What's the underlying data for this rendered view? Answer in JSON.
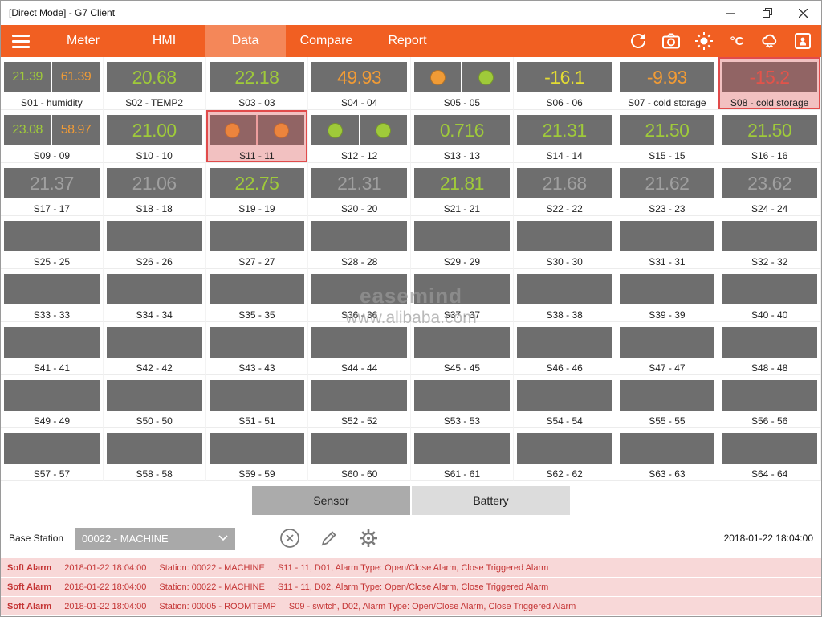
{
  "window": {
    "title": "[Direct Mode] - G7 Client"
  },
  "nav": {
    "tabs": [
      {
        "label": "Meter",
        "active": false
      },
      {
        "label": "HMI",
        "active": false
      },
      {
        "label": "Data",
        "active": true
      },
      {
        "label": "Compare",
        "active": false
      },
      {
        "label": "Report",
        "active": false
      }
    ],
    "celsius_label": "°C",
    "icon_names": [
      "sync-icon",
      "camera-icon",
      "brightness-icon",
      "celsius-unit",
      "cloud-icon",
      "exit-icon"
    ]
  },
  "colors": {
    "green": "#9fca3a",
    "orange": "#f09b36",
    "yellow": "#e3db33",
    "red": "#e25548",
    "gray": "#9f9f9f"
  },
  "sensors": [
    {
      "id": "S01",
      "label": "S01 - humidity",
      "type": "dual",
      "values": [
        "21.39",
        "61.39"
      ],
      "value_colors": [
        "green",
        "orange"
      ],
      "alarm": false
    },
    {
      "id": "S02",
      "label": "S02 - TEMP2",
      "type": "single",
      "values": [
        "20.68"
      ],
      "value_colors": [
        "green"
      ],
      "alarm": false
    },
    {
      "id": "S03",
      "label": "S03 - 03",
      "type": "single",
      "values": [
        "22.18"
      ],
      "value_colors": [
        "green"
      ],
      "alarm": false
    },
    {
      "id": "S04",
      "label": "S04 - 04",
      "type": "single",
      "values": [
        "49.93"
      ],
      "value_colors": [
        "orange"
      ],
      "alarm": false
    },
    {
      "id": "S05",
      "label": "S05 - 05",
      "type": "circles",
      "circle_colors": [
        "orange",
        "green"
      ],
      "alarm": false
    },
    {
      "id": "S06",
      "label": "S06 - 06",
      "type": "single",
      "values": [
        "-16.1"
      ],
      "value_colors": [
        "yellow"
      ],
      "alarm": false
    },
    {
      "id": "S07",
      "label": "S07 - cold storage",
      "type": "single",
      "values": [
        "-9.93"
      ],
      "value_colors": [
        "orange"
      ],
      "alarm": false
    },
    {
      "id": "S08",
      "label": "S08 - cold storage",
      "type": "single",
      "values": [
        "-15.2"
      ],
      "value_colors": [
        "red"
      ],
      "alarm": true
    },
    {
      "id": "S09",
      "label": "S09 - 09",
      "type": "dual",
      "values": [
        "23.08",
        "58.97"
      ],
      "value_colors": [
        "green",
        "orange"
      ],
      "alarm": false
    },
    {
      "id": "S10",
      "label": "S10 - 10",
      "type": "single",
      "values": [
        "21.00"
      ],
      "value_colors": [
        "green"
      ],
      "alarm": false
    },
    {
      "id": "S11",
      "label": "S11 - 11",
      "type": "circles",
      "circle_colors": [
        "orange",
        "orange"
      ],
      "alarm": true
    },
    {
      "id": "S12",
      "label": "S12 - 12",
      "type": "circles",
      "circle_colors": [
        "green",
        "green"
      ],
      "alarm": false
    },
    {
      "id": "S13",
      "label": "S13 - 13",
      "type": "single",
      "values": [
        "0.716"
      ],
      "value_colors": [
        "green"
      ],
      "alarm": false
    },
    {
      "id": "S14",
      "label": "S14 - 14",
      "type": "single",
      "values": [
        "21.31"
      ],
      "value_colors": [
        "green"
      ],
      "alarm": false
    },
    {
      "id": "S15",
      "label": "S15 - 15",
      "type": "single",
      "values": [
        "21.50"
      ],
      "value_colors": [
        "green"
      ],
      "alarm": false
    },
    {
      "id": "S16",
      "label": "S16 - 16",
      "type": "single",
      "values": [
        "21.50"
      ],
      "value_colors": [
        "green"
      ],
      "alarm": false
    },
    {
      "id": "S17",
      "label": "S17 - 17",
      "type": "single",
      "values": [
        "21.37"
      ],
      "value_colors": [
        "gray"
      ],
      "alarm": false
    },
    {
      "id": "S18",
      "label": "S18 - 18",
      "type": "single",
      "values": [
        "21.06"
      ],
      "value_colors": [
        "gray"
      ],
      "alarm": false
    },
    {
      "id": "S19",
      "label": "S19 - 19",
      "type": "single",
      "values": [
        "22.75"
      ],
      "value_colors": [
        "green"
      ],
      "alarm": false
    },
    {
      "id": "S20",
      "label": "S20 - 20",
      "type": "single",
      "values": [
        "21.31"
      ],
      "value_colors": [
        "gray"
      ],
      "alarm": false
    },
    {
      "id": "S21",
      "label": "S21 - 21",
      "type": "single",
      "values": [
        "21.81"
      ],
      "value_colors": [
        "green"
      ],
      "alarm": false
    },
    {
      "id": "S22",
      "label": "S22 - 22",
      "type": "single",
      "values": [
        "21.68"
      ],
      "value_colors": [
        "gray"
      ],
      "alarm": false
    },
    {
      "id": "S23",
      "label": "S23 - 23",
      "type": "single",
      "values": [
        "21.62"
      ],
      "value_colors": [
        "gray"
      ],
      "alarm": false
    },
    {
      "id": "S24",
      "label": "S24 - 24",
      "type": "single",
      "values": [
        "23.62"
      ],
      "value_colors": [
        "gray"
      ],
      "alarm": false
    },
    {
      "id": "S25",
      "label": "S25 - 25",
      "type": "empty"
    },
    {
      "id": "S26",
      "label": "S26 - 26",
      "type": "empty"
    },
    {
      "id": "S27",
      "label": "S27 - 27",
      "type": "empty"
    },
    {
      "id": "S28",
      "label": "S28 - 28",
      "type": "empty"
    },
    {
      "id": "S29",
      "label": "S29 - 29",
      "type": "empty"
    },
    {
      "id": "S30",
      "label": "S30 - 30",
      "type": "empty"
    },
    {
      "id": "S31",
      "label": "S31 - 31",
      "type": "empty"
    },
    {
      "id": "S32",
      "label": "S32 - 32",
      "type": "empty"
    },
    {
      "id": "S33",
      "label": "S33 - 33",
      "type": "empty"
    },
    {
      "id": "S34",
      "label": "S34 - 34",
      "type": "empty"
    },
    {
      "id": "S35",
      "label": "S35 - 35",
      "type": "empty"
    },
    {
      "id": "S36",
      "label": "S36 - 36",
      "type": "empty"
    },
    {
      "id": "S37",
      "label": "S37 - 37",
      "type": "empty"
    },
    {
      "id": "S38",
      "label": "S38 - 38",
      "type": "empty"
    },
    {
      "id": "S39",
      "label": "S39 - 39",
      "type": "empty"
    },
    {
      "id": "S40",
      "label": "S40 - 40",
      "type": "empty"
    },
    {
      "id": "S41",
      "label": "S41 - 41",
      "type": "empty"
    },
    {
      "id": "S42",
      "label": "S42 - 42",
      "type": "empty"
    },
    {
      "id": "S43",
      "label": "S43 - 43",
      "type": "empty"
    },
    {
      "id": "S44",
      "label": "S44 - 44",
      "type": "empty"
    },
    {
      "id": "S45",
      "label": "S45 - 45",
      "type": "empty"
    },
    {
      "id": "S46",
      "label": "S46 - 46",
      "type": "empty"
    },
    {
      "id": "S47",
      "label": "S47 - 47",
      "type": "empty"
    },
    {
      "id": "S48",
      "label": "S48 - 48",
      "type": "empty"
    },
    {
      "id": "S49",
      "label": "S49 - 49",
      "type": "empty"
    },
    {
      "id": "S50",
      "label": "S50 - 50",
      "type": "empty"
    },
    {
      "id": "S51",
      "label": "S51 - 51",
      "type": "empty"
    },
    {
      "id": "S52",
      "label": "S52 - 52",
      "type": "empty"
    },
    {
      "id": "S53",
      "label": "S53 - 53",
      "type": "empty"
    },
    {
      "id": "S54",
      "label": "S54 - 54",
      "type": "empty"
    },
    {
      "id": "S55",
      "label": "S55 - 55",
      "type": "empty"
    },
    {
      "id": "S56",
      "label": "S56 - 56",
      "type": "empty"
    },
    {
      "id": "S57",
      "label": "S57 - 57",
      "type": "empty"
    },
    {
      "id": "S58",
      "label": "S58 - 58",
      "type": "empty"
    },
    {
      "id": "S59",
      "label": "S59 - 59",
      "type": "empty"
    },
    {
      "id": "S60",
      "label": "S60 - 60",
      "type": "empty"
    },
    {
      "id": "S61",
      "label": "S61 - 61",
      "type": "empty"
    },
    {
      "id": "S62",
      "label": "S62 - 62",
      "type": "empty"
    },
    {
      "id": "S63",
      "label": "S63 - 63",
      "type": "empty"
    },
    {
      "id": "S64",
      "label": "S64 - 64",
      "type": "empty"
    }
  ],
  "footer_tabs": [
    {
      "label": "Sensor",
      "active": true
    },
    {
      "label": "Battery",
      "active": false
    }
  ],
  "station_bar": {
    "label": "Base Station",
    "dropdown_value": "00022 - MACHINE",
    "icon_names": [
      "cancel-icon",
      "edit-icon",
      "settings-icon"
    ],
    "timestamp": "2018-01-22 18:04:00"
  },
  "logs": [
    {
      "type": "Soft Alarm",
      "time": "2018-01-22 18:04:00",
      "station": "Station: 00022 - MACHINE",
      "message": "S11 - 11, D01, Alarm Type: Open/Close Alarm, Close Triggered Alarm"
    },
    {
      "type": "Soft Alarm",
      "time": "2018-01-22 18:04:00",
      "station": "Station: 00022 - MACHINE",
      "message": "S11 - 11, D02, Alarm Type: Open/Close Alarm, Close Triggered Alarm"
    },
    {
      "type": "Soft Alarm",
      "time": "2018-01-22 18:04:00",
      "station": "Station: 00005 - ROOMTEMP",
      "message": "S09 - switch, D02, Alarm Type: Open/Close Alarm, Close Triggered Alarm"
    }
  ],
  "watermark": {
    "line1": "easemind",
    "line2": "www.alibaba.com"
  }
}
